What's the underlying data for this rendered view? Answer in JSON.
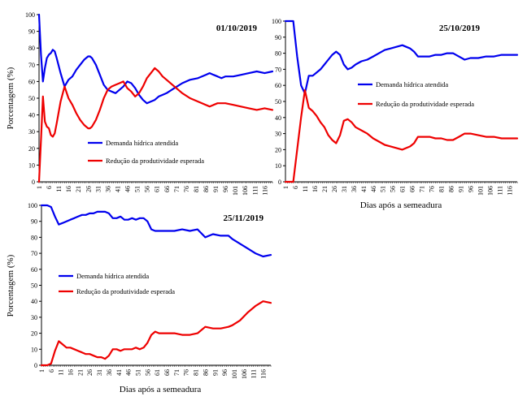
{
  "colors": {
    "demand": "#0000ee",
    "reduction": "#ee0000",
    "axis": "#000000"
  },
  "chart_data": [
    {
      "type": "line",
      "title": "01/10/2019",
      "ylabel": "Porcentagem (%)",
      "xlabel": "",
      "ylim": [
        0,
        100
      ],
      "yticks": [
        0,
        10,
        20,
        30,
        40,
        50,
        60,
        70,
        80,
        90,
        100
      ],
      "xlim": [
        1,
        120
      ],
      "xticks": [
        1,
        6,
        11,
        16,
        21,
        26,
        31,
        36,
        41,
        46,
        51,
        56,
        61,
        66,
        71,
        76,
        81,
        86,
        91,
        96,
        101,
        106,
        111,
        116
      ],
      "legend": "center",
      "series": [
        {
          "name": "Demanda hídrica atendida",
          "color": "#0000ee",
          "x": [
            1,
            2,
            3,
            4,
            5,
            6,
            7,
            8,
            9,
            10,
            12,
            14,
            16,
            18,
            20,
            22,
            24,
            26,
            27,
            28,
            30,
            32,
            34,
            36,
            38,
            40,
            42,
            44,
            46,
            48,
            50,
            52,
            54,
            56,
            58,
            60,
            62,
            64,
            66,
            70,
            74,
            78,
            82,
            86,
            88,
            90,
            92,
            94,
            96,
            100,
            104,
            108,
            112,
            116,
            120
          ],
          "y": [
            100,
            76,
            60,
            68,
            74,
            76,
            77,
            79,
            78,
            74,
            65,
            57,
            61,
            63,
            67,
            70,
            73,
            75,
            75,
            74,
            70,
            64,
            58,
            55,
            54,
            53,
            55,
            57,
            60,
            59,
            56,
            52,
            49,
            47,
            48,
            49,
            51,
            52,
            53,
            56,
            59,
            61,
            62,
            64,
            65,
            64,
            63,
            62,
            63,
            63,
            64,
            65,
            66,
            65,
            66
          ]
        },
        {
          "name": "Redução da produtividade esperada",
          "color": "#ee0000",
          "x": [
            1,
            2,
            3,
            4,
            5,
            6,
            7,
            8,
            9,
            10,
            12,
            14,
            16,
            18,
            20,
            22,
            24,
            26,
            27,
            28,
            30,
            32,
            34,
            36,
            38,
            40,
            42,
            44,
            46,
            48,
            50,
            52,
            54,
            56,
            58,
            60,
            62,
            64,
            66,
            70,
            74,
            78,
            82,
            86,
            88,
            90,
            92,
            94,
            96,
            100,
            104,
            108,
            112,
            116,
            120
          ],
          "y": [
            0,
            25,
            51,
            36,
            33,
            32,
            28,
            27,
            29,
            35,
            48,
            57,
            50,
            46,
            41,
            37,
            34,
            32,
            32,
            33,
            37,
            43,
            50,
            55,
            57,
            58,
            59,
            60,
            56,
            54,
            51,
            53,
            57,
            62,
            65,
            68,
            66,
            63,
            61,
            57,
            53,
            50,
            48,
            46,
            45,
            46,
            47,
            47,
            47,
            46,
            45,
            44,
            43,
            44,
            43
          ]
        }
      ]
    },
    {
      "type": "line",
      "title": "25/10/2019",
      "ylabel": "",
      "xlabel": "Dias após a semeadura",
      "ylim": [
        0,
        100
      ],
      "yticks": [
        0,
        10,
        20,
        30,
        40,
        50,
        60,
        70,
        80,
        90,
        100
      ],
      "xlim": [
        1,
        120
      ],
      "xticks": [
        1,
        6,
        11,
        16,
        21,
        26,
        31,
        36,
        41,
        46,
        51,
        56,
        61,
        66,
        71,
        76,
        81,
        86,
        91,
        96,
        101,
        106,
        111,
        116
      ],
      "legend": "center-right",
      "series": [
        {
          "name": "Demanda hídrica atendida",
          "color": "#0000ee",
          "x": [
            1,
            3,
            5,
            7,
            9,
            11,
            13,
            15,
            17,
            19,
            21,
            23,
            25,
            27,
            29,
            31,
            33,
            35,
            37,
            40,
            43,
            46,
            49,
            52,
            55,
            58,
            61,
            63,
            65,
            67,
            69,
            72,
            75,
            78,
            81,
            84,
            87,
            90,
            93,
            96,
            100,
            104,
            108,
            112,
            116,
            120
          ],
          "y": [
            100,
            100,
            100,
            78,
            60,
            55,
            66,
            66,
            68,
            70,
            73,
            76,
            79,
            81,
            79,
            73,
            70,
            71,
            73,
            75,
            76,
            78,
            80,
            82,
            83,
            84,
            85,
            84,
            83,
            81,
            78,
            78,
            78,
            79,
            79,
            80,
            80,
            78,
            76,
            77,
            77,
            78,
            78,
            79,
            79,
            79
          ]
        },
        {
          "name": "Redução da produtividade esperada",
          "color": "#ee0000",
          "x": [
            1,
            3,
            5,
            7,
            9,
            11,
            13,
            15,
            17,
            19,
            21,
            23,
            25,
            27,
            29,
            31,
            33,
            35,
            37,
            40,
            43,
            46,
            49,
            52,
            55,
            58,
            61,
            63,
            65,
            67,
            69,
            72,
            75,
            78,
            81,
            84,
            87,
            90,
            93,
            96,
            100,
            104,
            108,
            112,
            116,
            120
          ],
          "y": [
            0,
            0,
            0,
            20,
            40,
            57,
            46,
            44,
            41,
            37,
            34,
            29,
            26,
            24,
            29,
            38,
            39,
            37,
            34,
            32,
            30,
            27,
            25,
            23,
            22,
            21,
            20,
            21,
            22,
            24,
            28,
            28,
            28,
            27,
            27,
            26,
            26,
            28,
            30,
            30,
            29,
            28,
            28,
            27,
            27,
            27
          ]
        }
      ]
    },
    {
      "type": "line",
      "title": "25/11/2019",
      "ylabel": "Porcentagem (%)",
      "xlabel": "Dias após a semeadura",
      "ylim": [
        0,
        100
      ],
      "yticks": [
        0,
        10,
        20,
        30,
        40,
        50,
        60,
        70,
        80,
        90,
        100
      ],
      "xlim": [
        1,
        120
      ],
      "xticks": [
        1,
        6,
        11,
        16,
        21,
        26,
        31,
        36,
        41,
        46,
        51,
        56,
        61,
        66,
        71,
        76,
        81,
        86,
        91,
        96,
        101,
        106,
        111,
        116
      ],
      "legend": "center",
      "series": [
        {
          "name": "Demanda hídrica atendida",
          "color": "#0000ee",
          "x": [
            1,
            4,
            6,
            8,
            10,
            12,
            14,
            16,
            18,
            20,
            22,
            24,
            26,
            28,
            30,
            32,
            34,
            36,
            38,
            40,
            42,
            44,
            46,
            48,
            50,
            52,
            54,
            56,
            58,
            60,
            62,
            64,
            66,
            70,
            74,
            78,
            82,
            86,
            90,
            94,
            98,
            100,
            104,
            108,
            112,
            116,
            120
          ],
          "y": [
            100,
            100,
            99,
            93,
            88,
            89,
            90,
            91,
            92,
            93,
            94,
            94,
            95,
            95,
            96,
            96,
            96,
            95,
            92,
            92,
            93,
            91,
            91,
            92,
            91,
            92,
            92,
            90,
            85,
            84,
            84,
            84,
            84,
            84,
            85,
            84,
            85,
            80,
            82,
            81,
            81,
            79,
            76,
            73,
            70,
            68,
            69
          ]
        },
        {
          "name": "Redução da produtividade esperada",
          "color": "#ee0000",
          "x": [
            1,
            4,
            6,
            8,
            10,
            12,
            14,
            16,
            18,
            20,
            22,
            24,
            26,
            28,
            30,
            32,
            34,
            36,
            38,
            40,
            42,
            44,
            46,
            48,
            50,
            52,
            54,
            56,
            58,
            60,
            62,
            64,
            66,
            70,
            74,
            78,
            82,
            86,
            90,
            94,
            98,
            100,
            104,
            108,
            112,
            116,
            120
          ],
          "y": [
            0,
            0,
            1,
            9,
            15,
            13,
            11,
            11,
            10,
            9,
            8,
            7,
            7,
            6,
            5,
            5,
            4,
            6,
            10,
            10,
            9,
            10,
            10,
            10,
            11,
            10,
            11,
            14,
            19,
            21,
            20,
            20,
            20,
            20,
            19,
            19,
            20,
            24,
            23,
            23,
            24,
            25,
            28,
            33,
            37,
            40,
            39
          ]
        }
      ]
    }
  ]
}
